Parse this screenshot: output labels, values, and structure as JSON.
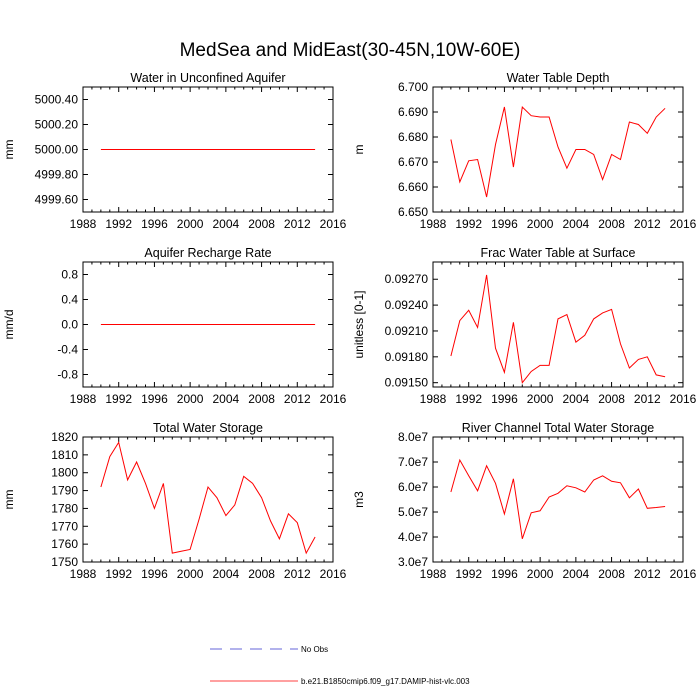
{
  "title": "MedSea and MidEast(30-45N,10W-60E)",
  "colors": {
    "model": "#ff0000",
    "obs": "#3333cc",
    "frame": "#000000"
  },
  "legend": [
    {
      "label": "No Obs",
      "style": "dashed",
      "color": "#3333cc"
    },
    {
      "label": "b.e21.B1850cmip6.f09_g17.DAMIP-hist-vlc.003",
      "style": "solid",
      "color": "#ff0000"
    }
  ],
  "chart_data": [
    {
      "type": "line",
      "title": "Water in Unconfined Aquifer",
      "ylabel": "mm",
      "xlim": [
        1988,
        2016
      ],
      "ylim": [
        4999.5,
        5000.5
      ],
      "xticks": [
        1988,
        1992,
        1996,
        2000,
        2004,
        2008,
        2012,
        2016
      ],
      "yticks": [
        4999.6,
        4999.8,
        5000.0,
        5000.2,
        5000.4
      ],
      "ytick_labels": [
        "4999.60",
        "4999.80",
        "5000.00",
        "5000.20",
        "5000.40"
      ],
      "x": [
        1990,
        1991,
        1992,
        1993,
        1994,
        1995,
        1996,
        1997,
        1998,
        1999,
        2000,
        2001,
        2002,
        2003,
        2004,
        2005,
        2006,
        2007,
        2008,
        2009,
        2010,
        2011,
        2012,
        2013,
        2014
      ],
      "series": [
        {
          "values": [
            5000.0,
            5000.0,
            5000.0,
            5000.0,
            5000.0,
            5000.0,
            5000.0,
            5000.0,
            5000.0,
            5000.0,
            5000.0,
            5000.0,
            5000.0,
            5000.0,
            5000.0,
            5000.0,
            5000.0,
            5000.0,
            5000.0,
            5000.0,
            5000.0,
            5000.0,
            5000.0,
            5000.0,
            5000.0
          ]
        }
      ]
    },
    {
      "type": "line",
      "title": "Water Table Depth",
      "ylabel": "m",
      "xlim": [
        1988,
        2016
      ],
      "ylim": [
        6.65,
        6.7
      ],
      "xticks": [
        1988,
        1992,
        1996,
        2000,
        2004,
        2008,
        2012,
        2016
      ],
      "yticks": [
        6.65,
        6.66,
        6.67,
        6.68,
        6.69,
        6.7
      ],
      "ytick_labels": [
        "6.650",
        "6.660",
        "6.670",
        "6.680",
        "6.690",
        "6.700"
      ],
      "x": [
        1990,
        1991,
        1992,
        1993,
        1994,
        1995,
        1996,
        1997,
        1998,
        1999,
        2000,
        2001,
        2002,
        2003,
        2004,
        2005,
        2006,
        2007,
        2008,
        2009,
        2010,
        2011,
        2012,
        2013,
        2014
      ],
      "series": [
        {
          "values": [
            6.679,
            6.662,
            6.6705,
            6.671,
            6.656,
            6.677,
            6.692,
            6.668,
            6.692,
            6.6885,
            6.688,
            6.688,
            6.676,
            6.6675,
            6.675,
            6.675,
            6.673,
            6.663,
            6.673,
            6.671,
            6.686,
            6.685,
            6.6815,
            6.688,
            6.6915
          ]
        }
      ]
    },
    {
      "type": "line",
      "title": "Aquifer Recharge Rate",
      "ylabel": "mm/d",
      "xlim": [
        1988,
        2016
      ],
      "ylim": [
        -1.0,
        1.0
      ],
      "xticks": [
        1988,
        1992,
        1996,
        2000,
        2004,
        2008,
        2012,
        2016
      ],
      "yticks": [
        -0.8,
        -0.4,
        0.0,
        0.4,
        0.8
      ],
      "ytick_labels": [
        "-0.8",
        "-0.4",
        "0.0",
        "0.4",
        "0.8"
      ],
      "x": [
        1990,
        1991,
        1992,
        1993,
        1994,
        1995,
        1996,
        1997,
        1998,
        1999,
        2000,
        2001,
        2002,
        2003,
        2004,
        2005,
        2006,
        2007,
        2008,
        2009,
        2010,
        2011,
        2012,
        2013,
        2014
      ],
      "series": [
        {
          "values": [
            0,
            0,
            0,
            0,
            0,
            0,
            0,
            0,
            0,
            0,
            0,
            0,
            0,
            0,
            0,
            0,
            0,
            0,
            0,
            0,
            0,
            0,
            0,
            0,
            0
          ]
        }
      ]
    },
    {
      "type": "line",
      "title": "Frac Water Table at Surface",
      "ylabel": "unitless [0-1]",
      "xlim": [
        1988,
        2016
      ],
      "ylim": [
        0.09145,
        0.0929
      ],
      "xticks": [
        1988,
        1992,
        1996,
        2000,
        2004,
        2008,
        2012,
        2016
      ],
      "yticks": [
        0.0915,
        0.0918,
        0.0921,
        0.0924,
        0.0927
      ],
      "ytick_labels": [
        "0.09150",
        "0.09180",
        "0.09210",
        "0.09240",
        "0.09270"
      ],
      "x": [
        1990,
        1991,
        1992,
        1993,
        1994,
        1995,
        1996,
        1997,
        1998,
        1999,
        2000,
        2001,
        2002,
        2003,
        2004,
        2005,
        2006,
        2007,
        2008,
        2009,
        2010,
        2011,
        2012,
        2013,
        2014
      ],
      "series": [
        {
          "values": [
            0.09181,
            0.09222,
            0.09234,
            0.09214,
            0.09275,
            0.0919,
            0.09162,
            0.0922,
            0.0915,
            0.09163,
            0.0917,
            0.0917,
            0.09224,
            0.09229,
            0.09197,
            0.09205,
            0.09224,
            0.09231,
            0.09235,
            0.09195,
            0.09167,
            0.09177,
            0.0918,
            0.09159,
            0.09157
          ]
        }
      ]
    },
    {
      "type": "line",
      "title": "Total Water Storage",
      "ylabel": "mm",
      "xlim": [
        1988,
        2016
      ],
      "ylim": [
        1750,
        1820
      ],
      "xticks": [
        1988,
        1992,
        1996,
        2000,
        2004,
        2008,
        2012,
        2016
      ],
      "yticks": [
        1750,
        1760,
        1770,
        1780,
        1790,
        1800,
        1810,
        1820
      ],
      "ytick_labels": [
        "1750",
        "1760",
        "1770",
        "1780",
        "1790",
        "1800",
        "1810",
        "1820"
      ],
      "x": [
        1990,
        1991,
        1992,
        1993,
        1994,
        1995,
        1996,
        1997,
        1998,
        1999,
        2000,
        2001,
        2002,
        2003,
        2004,
        2005,
        2006,
        2007,
        2008,
        2009,
        2010,
        2011,
        2012,
        2013,
        2014
      ],
      "series": [
        {
          "values": [
            1792,
            1809,
            1817,
            1796,
            1806,
            1794,
            1780,
            1794,
            1755,
            1756,
            1757,
            1774,
            1792,
            1786,
            1776,
            1782,
            1798,
            1794,
            1786,
            1773,
            1763,
            1777,
            1772,
            1755,
            1764
          ]
        }
      ]
    },
    {
      "type": "line",
      "title": "River Channel Total Water Storage",
      "ylabel": "m3",
      "xlim": [
        1988,
        2016
      ],
      "ylim": [
        30000000,
        80000000
      ],
      "xticks": [
        1988,
        1992,
        1996,
        2000,
        2004,
        2008,
        2012,
        2016
      ],
      "yticks": [
        30000000,
        40000000,
        50000000,
        60000000,
        70000000,
        80000000
      ],
      "ytick_labels": [
        "3.0e7",
        "4.0e7",
        "5.0e7",
        "6.0e7",
        "7.0e7",
        "8.0e7"
      ],
      "x": [
        1990,
        1991,
        1992,
        1993,
        1994,
        1995,
        1996,
        1997,
        1998,
        1999,
        2000,
        2001,
        2002,
        2003,
        2004,
        2005,
        2006,
        2007,
        2008,
        2009,
        2010,
        2011,
        2012,
        2013,
        2014
      ],
      "series": [
        {
          "values": [
            58000000,
            70800000,
            64500000,
            58500000,
            68500000,
            61500000,
            49200000,
            63300000,
            39300000,
            49700000,
            50500000,
            56000000,
            57500000,
            60500000,
            59700000,
            58000000,
            62800000,
            64500000,
            62300000,
            61700000,
            55700000,
            59200000,
            51500000,
            51800000,
            52200000
          ]
        }
      ]
    }
  ]
}
